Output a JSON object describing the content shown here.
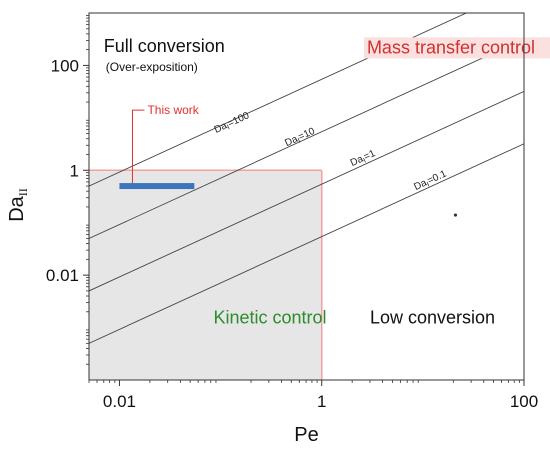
{
  "chart_data": {
    "type": "line",
    "title": "",
    "xlabel": "Pe",
    "ylabel": "Da",
    "ylabel_sub": "II",
    "x_scale": "log",
    "y_scale": "log",
    "xlim": [
      0.005,
      100
    ],
    "ylim": [
      0.0001,
      1000
    ],
    "x_ticks": [
      {
        "value": 0.01,
        "label": "0.01"
      },
      {
        "value": 1,
        "label": "1"
      },
      {
        "value": 100,
        "label": "100"
      }
    ],
    "y_ticks": [
      {
        "value": 0.01,
        "label": "0.01"
      },
      {
        "value": 1,
        "label": "1"
      },
      {
        "value": 100,
        "label": "100"
      }
    ],
    "grid": false,
    "series": [
      {
        "name": "Da=100",
        "label_main": "Da",
        "label_sub": "I",
        "label_rest": "=100",
        "x": [
          0.005,
          100
        ],
        "y": [
          0.5,
          3200
        ],
        "label_at": [
          0.09,
          4.3
        ]
      },
      {
        "name": "Da=10",
        "label_main": "Da",
        "label_sub": "I",
        "label_rest": "=10",
        "x": [
          0.005,
          100
        ],
        "y": [
          0.05,
          320
        ],
        "label_at": [
          0.45,
          2.4
        ]
      },
      {
        "name": "Da=1",
        "label_main": "Da",
        "label_sub": "I",
        "label_rest": "=1",
        "x": [
          0.005,
          100
        ],
        "y": [
          0.005,
          32
        ],
        "label_at": [
          2.0,
          1.0
        ]
      },
      {
        "name": "Da=0.1",
        "label_main": "Da",
        "label_sub": "I",
        "label_rest": "=0.1",
        "x": [
          0.005,
          100
        ],
        "y": [
          0.0005,
          3.2
        ],
        "label_at": [
          8.5,
          0.35
        ]
      }
    ],
    "kinetic_region": {
      "x": [
        0.005,
        1
      ],
      "y": [
        0.0001,
        1
      ],
      "fill": "#e6e6e6",
      "edge": "#f2a0a0"
    },
    "this_work": {
      "label": "This work",
      "x": [
        0.01,
        0.055
      ],
      "y": 0.5,
      "color": "#3a76be",
      "label_color": "#e03030"
    },
    "dot": {
      "x": 21,
      "y": 0.14
    },
    "regions": [
      {
        "text": "Full conversion",
        "sub": "(Over-exposition)",
        "x": 0.007,
        "y": 180,
        "color": "#111111"
      },
      {
        "text": "Mass transfer control",
        "x": 2.8,
        "y": 170,
        "color": "#d03030",
        "bg": "#fbe0e0"
      },
      {
        "text": "Kinetic control",
        "x": 0.085,
        "y": 0.0012,
        "color": "#2e8b2e"
      },
      {
        "text": "Low conversion",
        "x": 3.0,
        "y": 0.0012,
        "color": "#111111"
      }
    ],
    "colors": {
      "frame": "#333333",
      "lines": "#444444"
    }
  }
}
